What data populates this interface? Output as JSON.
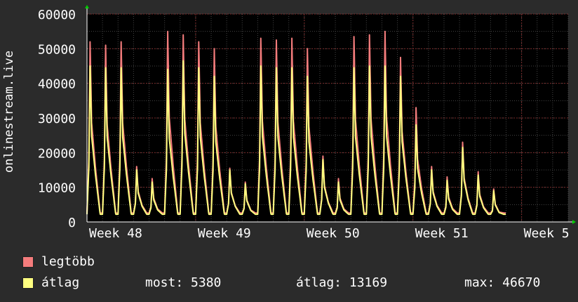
{
  "chart_data": {
    "type": "area",
    "ylabel": "onlinestream.live",
    "ylim": [
      0,
      60000
    ],
    "yticks": [
      0,
      10000,
      20000,
      30000,
      40000,
      50000,
      60000
    ],
    "ytick_labels": [
      "0",
      "10000",
      "20000",
      "30000",
      "40000",
      "50000",
      "60000"
    ],
    "xlim": [
      0,
      31
    ],
    "xticks": [
      {
        "x": 0,
        "label": "Week 48"
      },
      {
        "x": 7,
        "label": "Week 49"
      },
      {
        "x": 14,
        "label": "Week 50"
      },
      {
        "x": 21,
        "label": "Week 51"
      },
      {
        "x": 28,
        "label": "Week 5"
      }
    ],
    "grid": true,
    "legend_position": "bottom-left",
    "series": [
      {
        "name": "legtöbb",
        "color": "#f47c7c",
        "daily_peaks": [
          52000,
          51000,
          52000,
          16000,
          12500,
          55000,
          54000,
          52000,
          50000,
          15500,
          11500,
          53000,
          52500,
          53000,
          50000,
          19000,
          12500,
          53500,
          54000,
          55000,
          47500,
          33000,
          16000,
          13000,
          23000,
          14500,
          9500
        ]
      },
      {
        "name": "átlag",
        "color": "#ffff80",
        "daily_peaks": [
          45000,
          44500,
          44500,
          15000,
          11500,
          44000,
          46500,
          44500,
          42000,
          15000,
          11000,
          45000,
          44500,
          44500,
          42000,
          18000,
          11500,
          44500,
          45000,
          45000,
          42000,
          28000,
          15000,
          12000,
          21500,
          13500,
          9000
        ]
      }
    ]
  },
  "legend": {
    "items": [
      {
        "label": "legtöbb",
        "color": "#f47c7c"
      },
      {
        "label": "átlag",
        "color": "#ffff80"
      }
    ],
    "stats": {
      "most": "most: 5380",
      "atlag": "átlag: 13169",
      "max": "max: 46670"
    }
  }
}
